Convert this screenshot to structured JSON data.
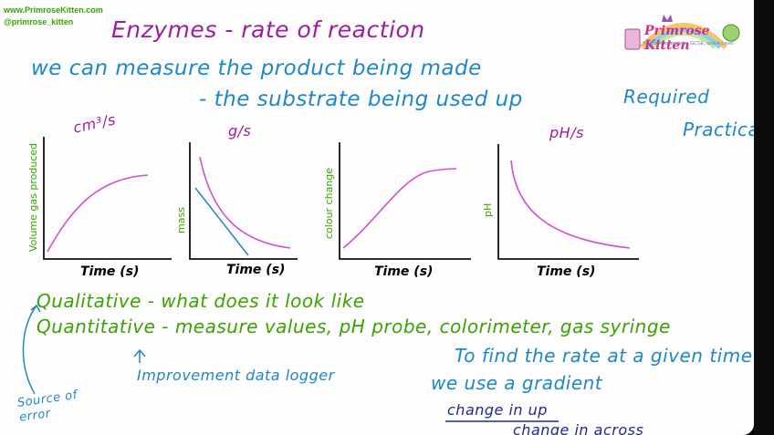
{
  "header": {
    "website": "www.PrimroseKitten.com",
    "handle": "@primrose_kitten"
  },
  "logo": {
    "name": "Primrose Kitten",
    "tagline": "YouTube tutorials for GCSE, and A-Level"
  },
  "title": "Enzymes - rate of reaction",
  "intro": {
    "line1": "we can measure the product being made",
    "line2": "- the substrate being used up"
  },
  "required_practical": {
    "line1": "Required",
    "line2": "Practical"
  },
  "graphs": [
    {
      "unit": "cm³/s",
      "ylabel": "Volume gas produced",
      "xlabel": "Time (s)"
    },
    {
      "unit": "g/s",
      "ylabel": "mass",
      "xlabel": "Time (s)"
    },
    {
      "unit": "",
      "ylabel": "colour change",
      "xlabel": "Time (s)"
    },
    {
      "unit": "pH/s",
      "ylabel": "pH",
      "xlabel": "Time (s)"
    }
  ],
  "notes": {
    "qualitative": "Qualitative - what does it look like",
    "quantitative": "Quantitative - measure values, pH probe, colorimeter, gas syringe",
    "improvement": "Improvement data logger",
    "source_of_error": "Source of error",
    "gradient_line1": "To find the rate at a given time",
    "gradient_line2": "we use a gradient",
    "gradient_num": "change in up",
    "gradient_den": "change in across"
  },
  "colors": {
    "magenta": "#9b1f9e",
    "blue": "#1e87c7",
    "green": "#3aa300",
    "curve": "#d24fd0"
  }
}
